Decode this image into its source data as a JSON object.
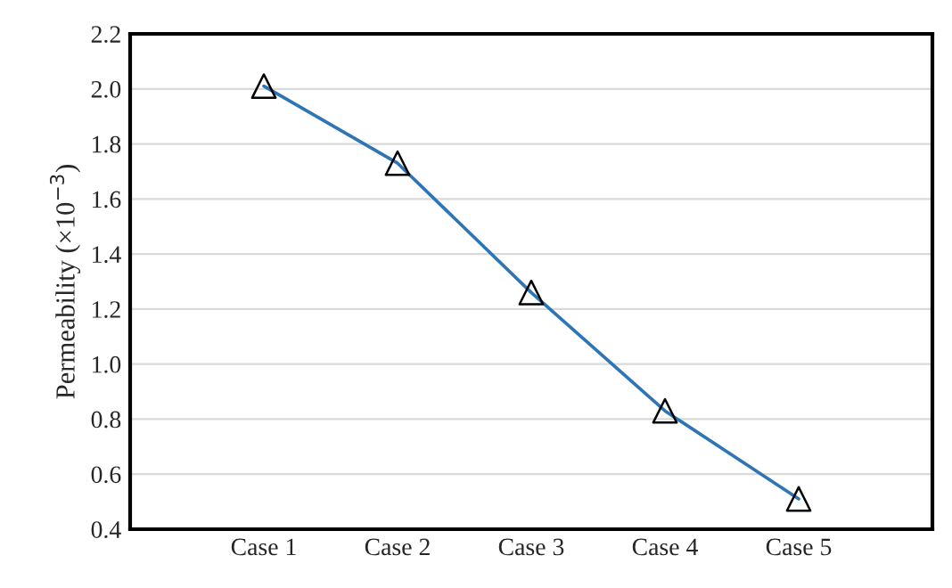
{
  "chart_data": {
    "type": "line",
    "ylabel": "Permeability (×10$^{−3}$)",
    "categories": [
      "Case 1",
      "Case 2",
      "Case 3",
      "Case 4",
      "Case 5"
    ],
    "series": [
      {
        "color": "#2e75b6",
        "values": [
          2.01,
          1.73,
          1.26,
          0.83,
          0.51
        ]
      }
    ],
    "ylim": [
      0.4,
      2.2
    ],
    "yticks": [
      {
        "value": 0.4,
        "label": "0.4"
      },
      {
        "value": 0.6,
        "label": "0.6"
      },
      {
        "value": 0.8,
        "label": "0.8"
      },
      {
        "value": 1.0,
        "label": "1.0"
      },
      {
        "value": 1.2,
        "label": "1.2"
      },
      {
        "value": 1.4,
        "label": "1.4"
      },
      {
        "value": 1.6,
        "label": "1.6"
      },
      {
        "value": 1.8,
        "label": "1.8"
      },
      {
        "value": 2.0,
        "label": "2.0"
      },
      {
        "value": 2.2,
        "label": "2.2"
      }
    ],
    "grid": "y",
    "marker": "triangle",
    "line_style": "solid"
  }
}
